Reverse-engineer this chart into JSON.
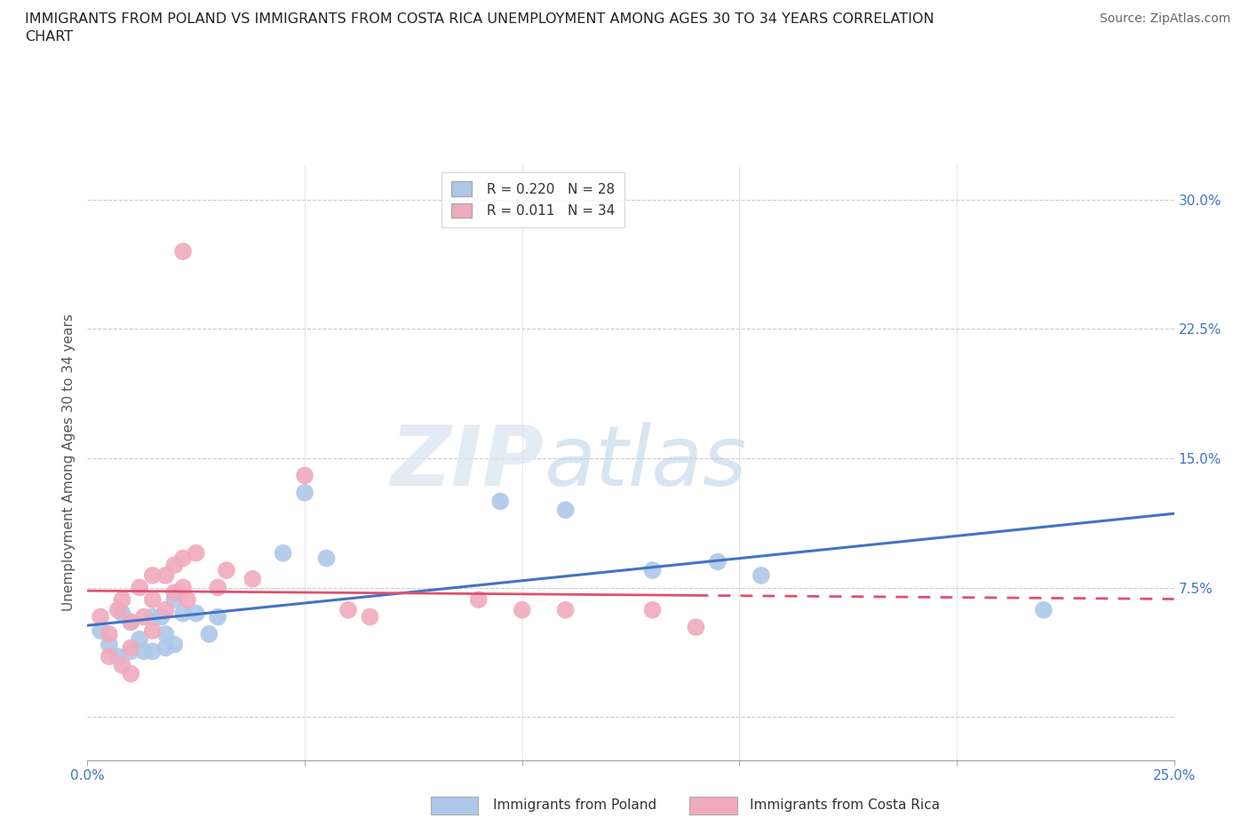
{
  "title": "IMMIGRANTS FROM POLAND VS IMMIGRANTS FROM COSTA RICA UNEMPLOYMENT AMONG AGES 30 TO 34 YEARS CORRELATION\nCHART",
  "source": "Source: ZipAtlas.com",
  "ylabel": "Unemployment Among Ages 30 to 34 years",
  "xlim": [
    0.0,
    0.25
  ],
  "ylim": [
    -0.025,
    0.32
  ],
  "yticks": [
    0.0,
    0.075,
    0.15,
    0.225,
    0.3
  ],
  "ytick_labels": [
    "",
    "7.5%",
    "15.0%",
    "22.5%",
    "30.0%"
  ],
  "xticks": [
    0.0,
    0.05,
    0.1,
    0.15,
    0.2,
    0.25
  ],
  "xtick_labels": [
    "0.0%",
    "",
    "",
    "",
    "",
    "25.0%"
  ],
  "grid_color": "#cccccc",
  "background_color": "#ffffff",
  "poland_color": "#adc8e8",
  "costa_rica_color": "#f0aabe",
  "poland_line_color": "#4472c4",
  "costa_rica_line_color": "#e05070",
  "poland_R": 0.22,
  "poland_N": 28,
  "costa_rica_R": 0.011,
  "costa_rica_N": 34,
  "watermark_zip": "ZIP",
  "watermark_atlas": "atlas",
  "poland_x": [
    0.003,
    0.005,
    0.007,
    0.008,
    0.01,
    0.01,
    0.012,
    0.013,
    0.015,
    0.015,
    0.017,
    0.018,
    0.018,
    0.02,
    0.02,
    0.022,
    0.025,
    0.028,
    0.03,
    0.045,
    0.05,
    0.055,
    0.095,
    0.11,
    0.13,
    0.145,
    0.155,
    0.22
  ],
  "poland_y": [
    0.05,
    0.042,
    0.035,
    0.06,
    0.038,
    0.055,
    0.045,
    0.038,
    0.058,
    0.038,
    0.058,
    0.048,
    0.04,
    0.068,
    0.042,
    0.06,
    0.06,
    0.048,
    0.058,
    0.095,
    0.13,
    0.092,
    0.125,
    0.12,
    0.085,
    0.09,
    0.082,
    0.062
  ],
  "costa_rica_x": [
    0.003,
    0.005,
    0.005,
    0.007,
    0.008,
    0.008,
    0.01,
    0.01,
    0.01,
    0.012,
    0.013,
    0.015,
    0.015,
    0.015,
    0.018,
    0.018,
    0.02,
    0.02,
    0.022,
    0.022,
    0.023,
    0.025,
    0.03,
    0.032,
    0.038,
    0.05,
    0.06,
    0.065,
    0.09,
    0.1,
    0.11,
    0.13,
    0.14,
    0.022
  ],
  "costa_rica_y": [
    0.058,
    0.048,
    0.035,
    0.062,
    0.068,
    0.03,
    0.055,
    0.04,
    0.025,
    0.075,
    0.058,
    0.082,
    0.068,
    0.05,
    0.082,
    0.062,
    0.088,
    0.072,
    0.092,
    0.075,
    0.068,
    0.095,
    0.075,
    0.085,
    0.08,
    0.14,
    0.062,
    0.058,
    0.068,
    0.062,
    0.062,
    0.062,
    0.052,
    0.27
  ]
}
